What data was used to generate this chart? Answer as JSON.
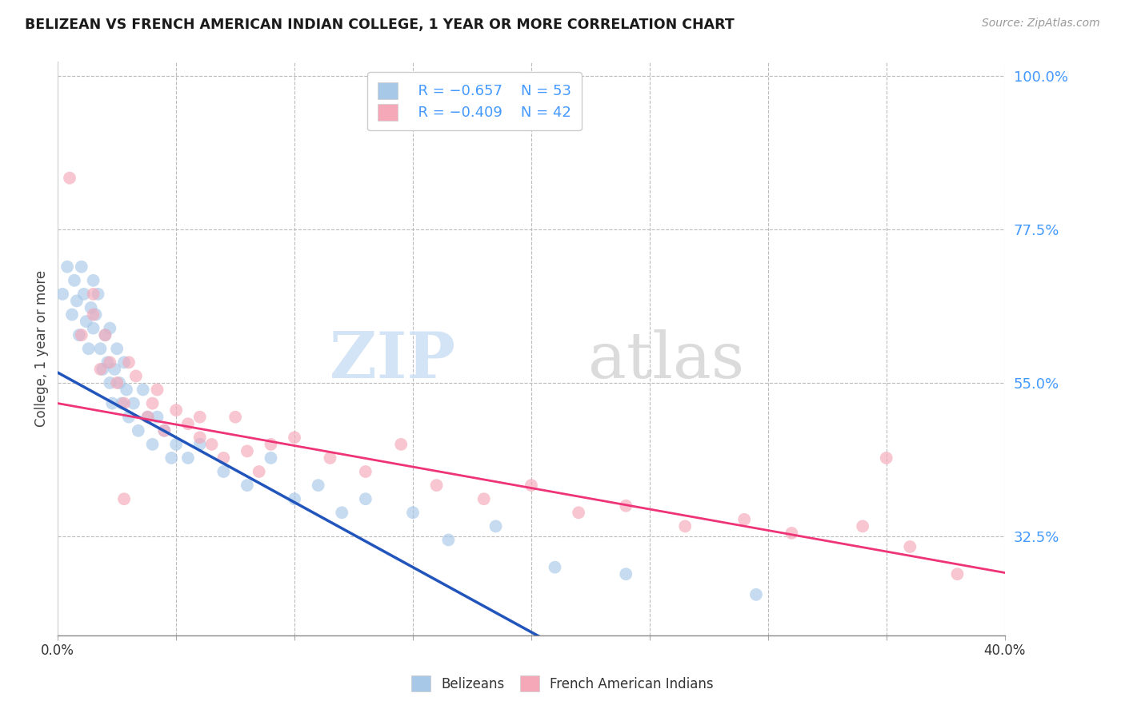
{
  "title": "BELIZEAN VS FRENCH AMERICAN INDIAN COLLEGE, 1 YEAR OR MORE CORRELATION CHART",
  "source": "Source: ZipAtlas.com",
  "ylabel": "College, 1 year or more",
  "x_min": 0.0,
  "x_max": 0.4,
  "y_min": 0.18,
  "y_max": 1.02,
  "x_ticks": [
    0.0,
    0.05,
    0.1,
    0.15,
    0.2,
    0.25,
    0.3,
    0.35,
    0.4
  ],
  "y_ticks_right": [
    0.325,
    0.55,
    0.775,
    1.0
  ],
  "y_tick_labels_right": [
    "32.5%",
    "55.0%",
    "77.5%",
    "100.0%"
  ],
  "color_blue": "#a8c8e8",
  "color_pink": "#f4a8b8",
  "color_blue_line": "#2255bb",
  "color_pink_line": "#ee3377",
  "color_right_axis": "#4499ff",
  "blue_r": "R = −0.657",
  "blue_n": "N = 53",
  "pink_r": "R = −0.409",
  "pink_n": "N = 42",
  "blue_points_x": [
    0.002,
    0.004,
    0.006,
    0.007,
    0.008,
    0.009,
    0.01,
    0.011,
    0.012,
    0.013,
    0.014,
    0.015,
    0.015,
    0.016,
    0.017,
    0.018,
    0.019,
    0.02,
    0.021,
    0.022,
    0.022,
    0.023,
    0.024,
    0.025,
    0.026,
    0.027,
    0.028,
    0.029,
    0.03,
    0.032,
    0.034,
    0.036,
    0.038,
    0.04,
    0.042,
    0.045,
    0.048,
    0.05,
    0.055,
    0.06,
    0.07,
    0.08,
    0.09,
    0.1,
    0.11,
    0.12,
    0.13,
    0.15,
    0.165,
    0.185,
    0.21,
    0.24,
    0.295
  ],
  "blue_points_y": [
    0.68,
    0.72,
    0.65,
    0.7,
    0.67,
    0.62,
    0.72,
    0.68,
    0.64,
    0.6,
    0.66,
    0.63,
    0.7,
    0.65,
    0.68,
    0.6,
    0.57,
    0.62,
    0.58,
    0.55,
    0.63,
    0.52,
    0.57,
    0.6,
    0.55,
    0.52,
    0.58,
    0.54,
    0.5,
    0.52,
    0.48,
    0.54,
    0.5,
    0.46,
    0.5,
    0.48,
    0.44,
    0.46,
    0.44,
    0.46,
    0.42,
    0.4,
    0.44,
    0.38,
    0.4,
    0.36,
    0.38,
    0.36,
    0.32,
    0.34,
    0.28,
    0.27,
    0.24
  ],
  "pink_points_x": [
    0.005,
    0.01,
    0.015,
    0.018,
    0.02,
    0.022,
    0.025,
    0.028,
    0.03,
    0.033,
    0.038,
    0.04,
    0.042,
    0.045,
    0.05,
    0.055,
    0.06,
    0.065,
    0.07,
    0.075,
    0.08,
    0.09,
    0.1,
    0.115,
    0.13,
    0.145,
    0.16,
    0.18,
    0.2,
    0.22,
    0.24,
    0.265,
    0.29,
    0.31,
    0.34,
    0.36,
    0.38,
    0.015,
    0.06,
    0.085,
    0.35,
    0.028
  ],
  "pink_points_y": [
    0.85,
    0.62,
    0.65,
    0.57,
    0.62,
    0.58,
    0.55,
    0.52,
    0.58,
    0.56,
    0.5,
    0.52,
    0.54,
    0.48,
    0.51,
    0.49,
    0.47,
    0.46,
    0.44,
    0.5,
    0.45,
    0.46,
    0.47,
    0.44,
    0.42,
    0.46,
    0.4,
    0.38,
    0.4,
    0.36,
    0.37,
    0.34,
    0.35,
    0.33,
    0.34,
    0.31,
    0.27,
    0.68,
    0.5,
    0.42,
    0.44,
    0.38
  ]
}
